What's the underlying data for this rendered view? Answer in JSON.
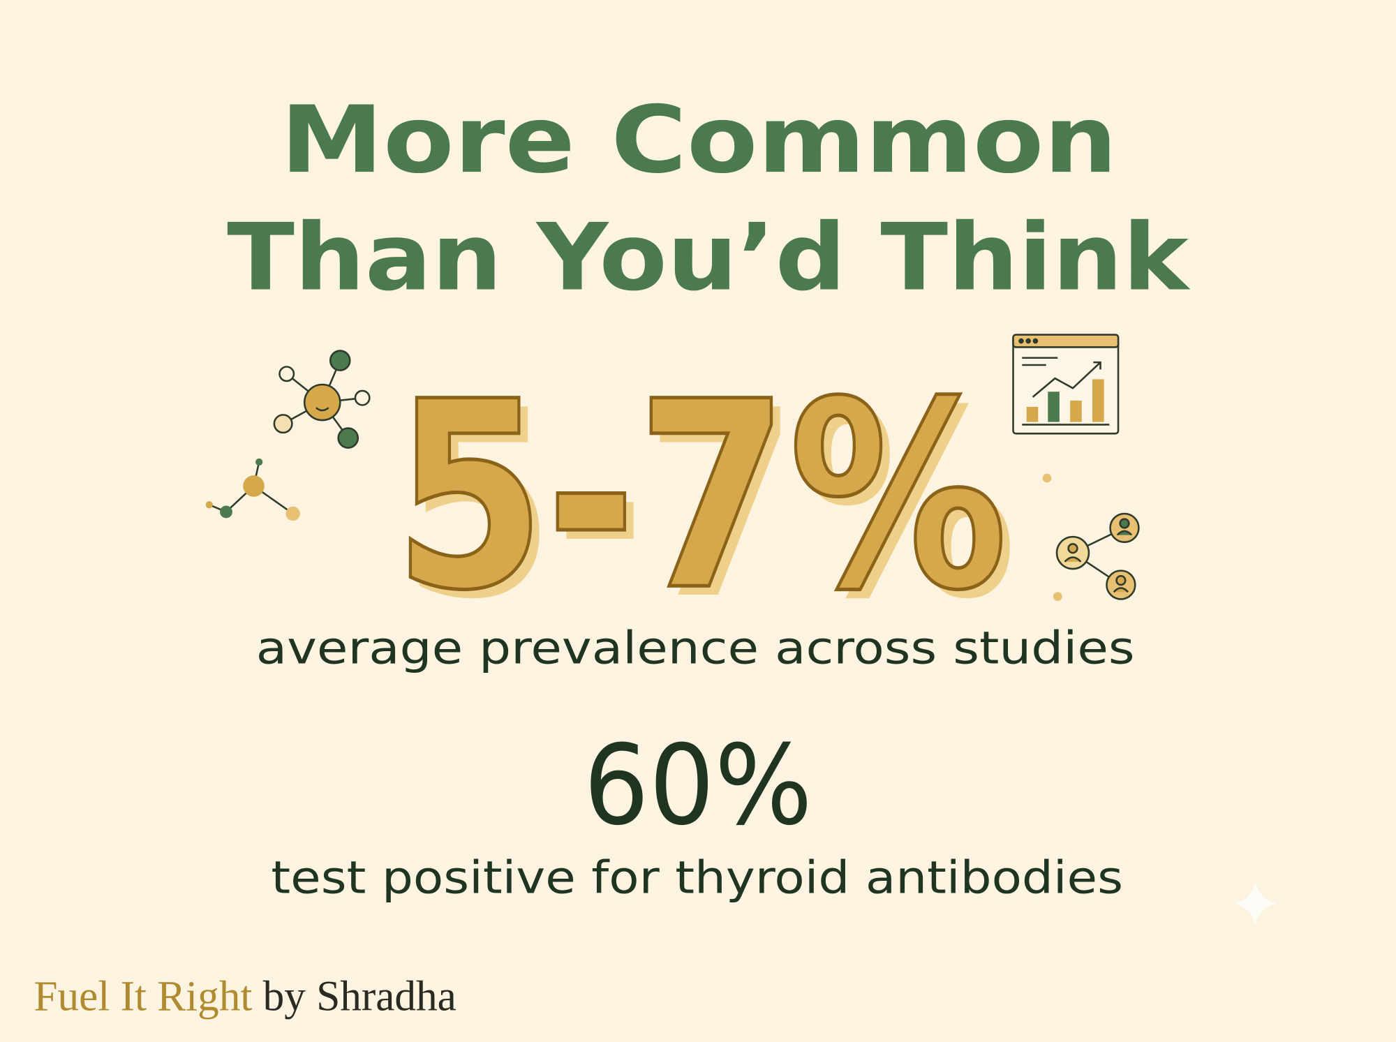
{
  "title": [
    "More Common",
    "Than You’d Think"
  ],
  "stats": [
    {
      "value": "5-7%",
      "label": "average prevalence across studies"
    },
    {
      "value": "60%",
      "label": "test positive for thyroid antibodies"
    }
  ],
  "footer": {
    "brand": "Fuel It Right",
    "byline": "by Shradha"
  }
}
